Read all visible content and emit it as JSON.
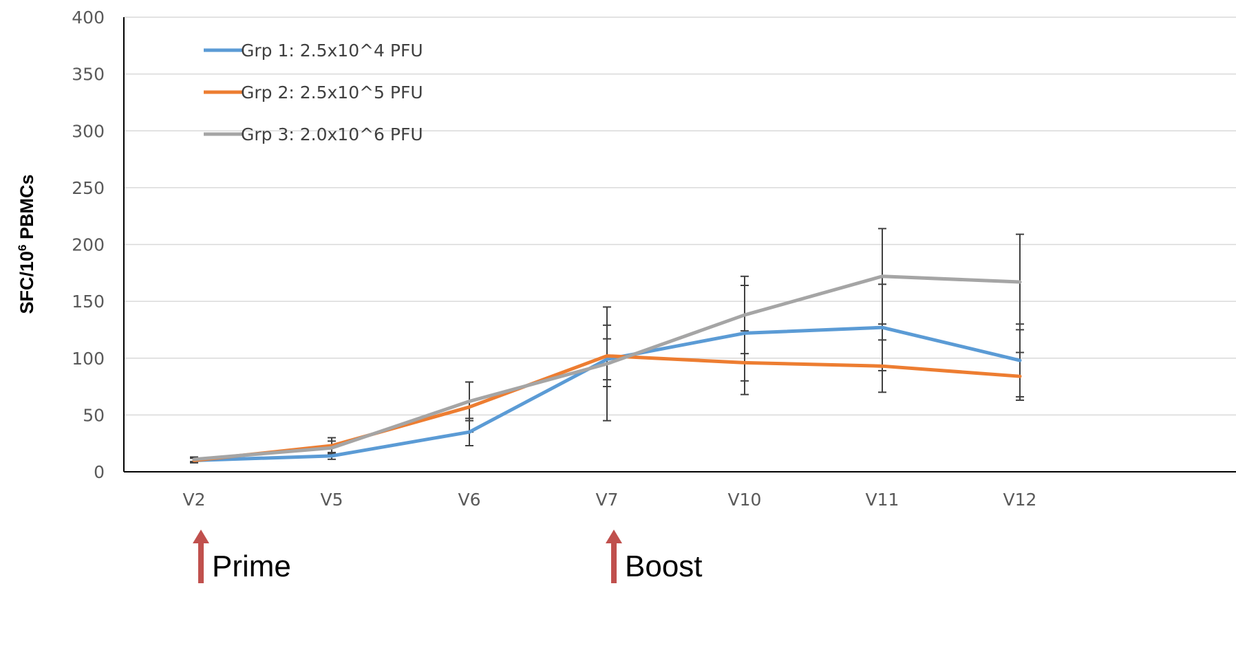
{
  "chart_data": {
    "type": "line",
    "categories": [
      "V2",
      "V5",
      "V6",
      "V7",
      "V10",
      "V11",
      "V12"
    ],
    "ylim": [
      0,
      400
    ],
    "yticks": [
      0,
      50,
      100,
      150,
      200,
      250,
      300,
      350,
      400
    ],
    "ylabel_main": "SFC/10",
    "ylabel_sup": "6",
    "ylabel_tail": " PBMCs",
    "xlabel": "",
    "grid": true,
    "legend_position": "top-left",
    "series": [
      {
        "name": "Grp 1: 2.5x10^4 PFU",
        "color": "#5b9bd5",
        "values": [
          10,
          14,
          35,
          99,
          122,
          127,
          98
        ],
        "errors": [
          2,
          3,
          12,
          18,
          42,
          38,
          32
        ]
      },
      {
        "name": "Grp 2: 2.5x10^5 PFU",
        "color": "#ed7d31",
        "values": [
          10,
          23,
          57,
          102,
          96,
          93,
          84
        ],
        "errors": [
          2,
          7,
          22,
          27,
          28,
          23,
          21
        ]
      },
      {
        "name": "Grp 3: 2.0x10^6 PFU",
        "color": "#a5a5a5",
        "values": [
          11,
          21,
          62,
          95,
          138,
          172,
          167
        ],
        "errors": [
          2,
          6,
          17,
          50,
          34,
          42,
          42
        ]
      }
    ],
    "annotations": [
      {
        "label": "Prime",
        "category": "V2",
        "color": "#c0504d"
      },
      {
        "label": "Boost",
        "category": "V7",
        "color": "#c0504d"
      }
    ]
  }
}
